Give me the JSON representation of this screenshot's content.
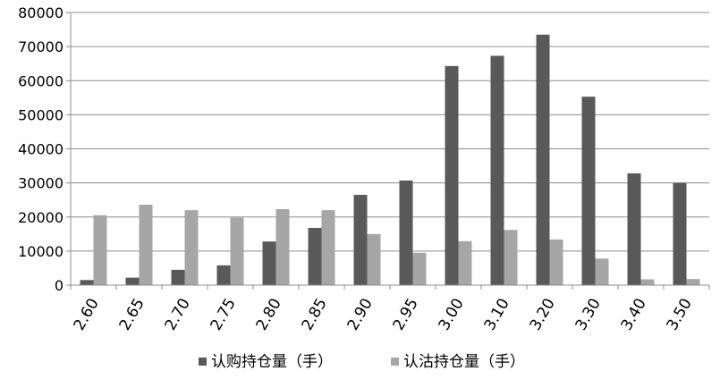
{
  "chart_data": {
    "type": "bar",
    "categories": [
      "2.60",
      "2.65",
      "2.70",
      "2.75",
      "2.80",
      "2.85",
      "2.90",
      "2.95",
      "3.00",
      "3.10",
      "3.20",
      "3.30",
      "3.40",
      "3.50"
    ],
    "series": [
      {
        "name": "认购持仓量（手）",
        "color": "#595959",
        "values": [
          1500,
          2200,
          4500,
          5800,
          12800,
          16800,
          26500,
          30700,
          64300,
          67300,
          73500,
          55300,
          32800,
          30000
        ]
      },
      {
        "name": "认沽持仓量（手）",
        "color": "#a6a6a6",
        "values": [
          20500,
          23600,
          22000,
          19800,
          22300,
          22000,
          15000,
          9500,
          12900,
          16200,
          13400,
          7800,
          1700,
          1800
        ]
      }
    ],
    "yticks": [
      "0",
      "10000",
      "20000",
      "30000",
      "40000",
      "50000",
      "60000",
      "70000",
      "80000"
    ],
    "ylim": [
      0,
      80000
    ],
    "grid": true,
    "legend_position": "bottom"
  }
}
